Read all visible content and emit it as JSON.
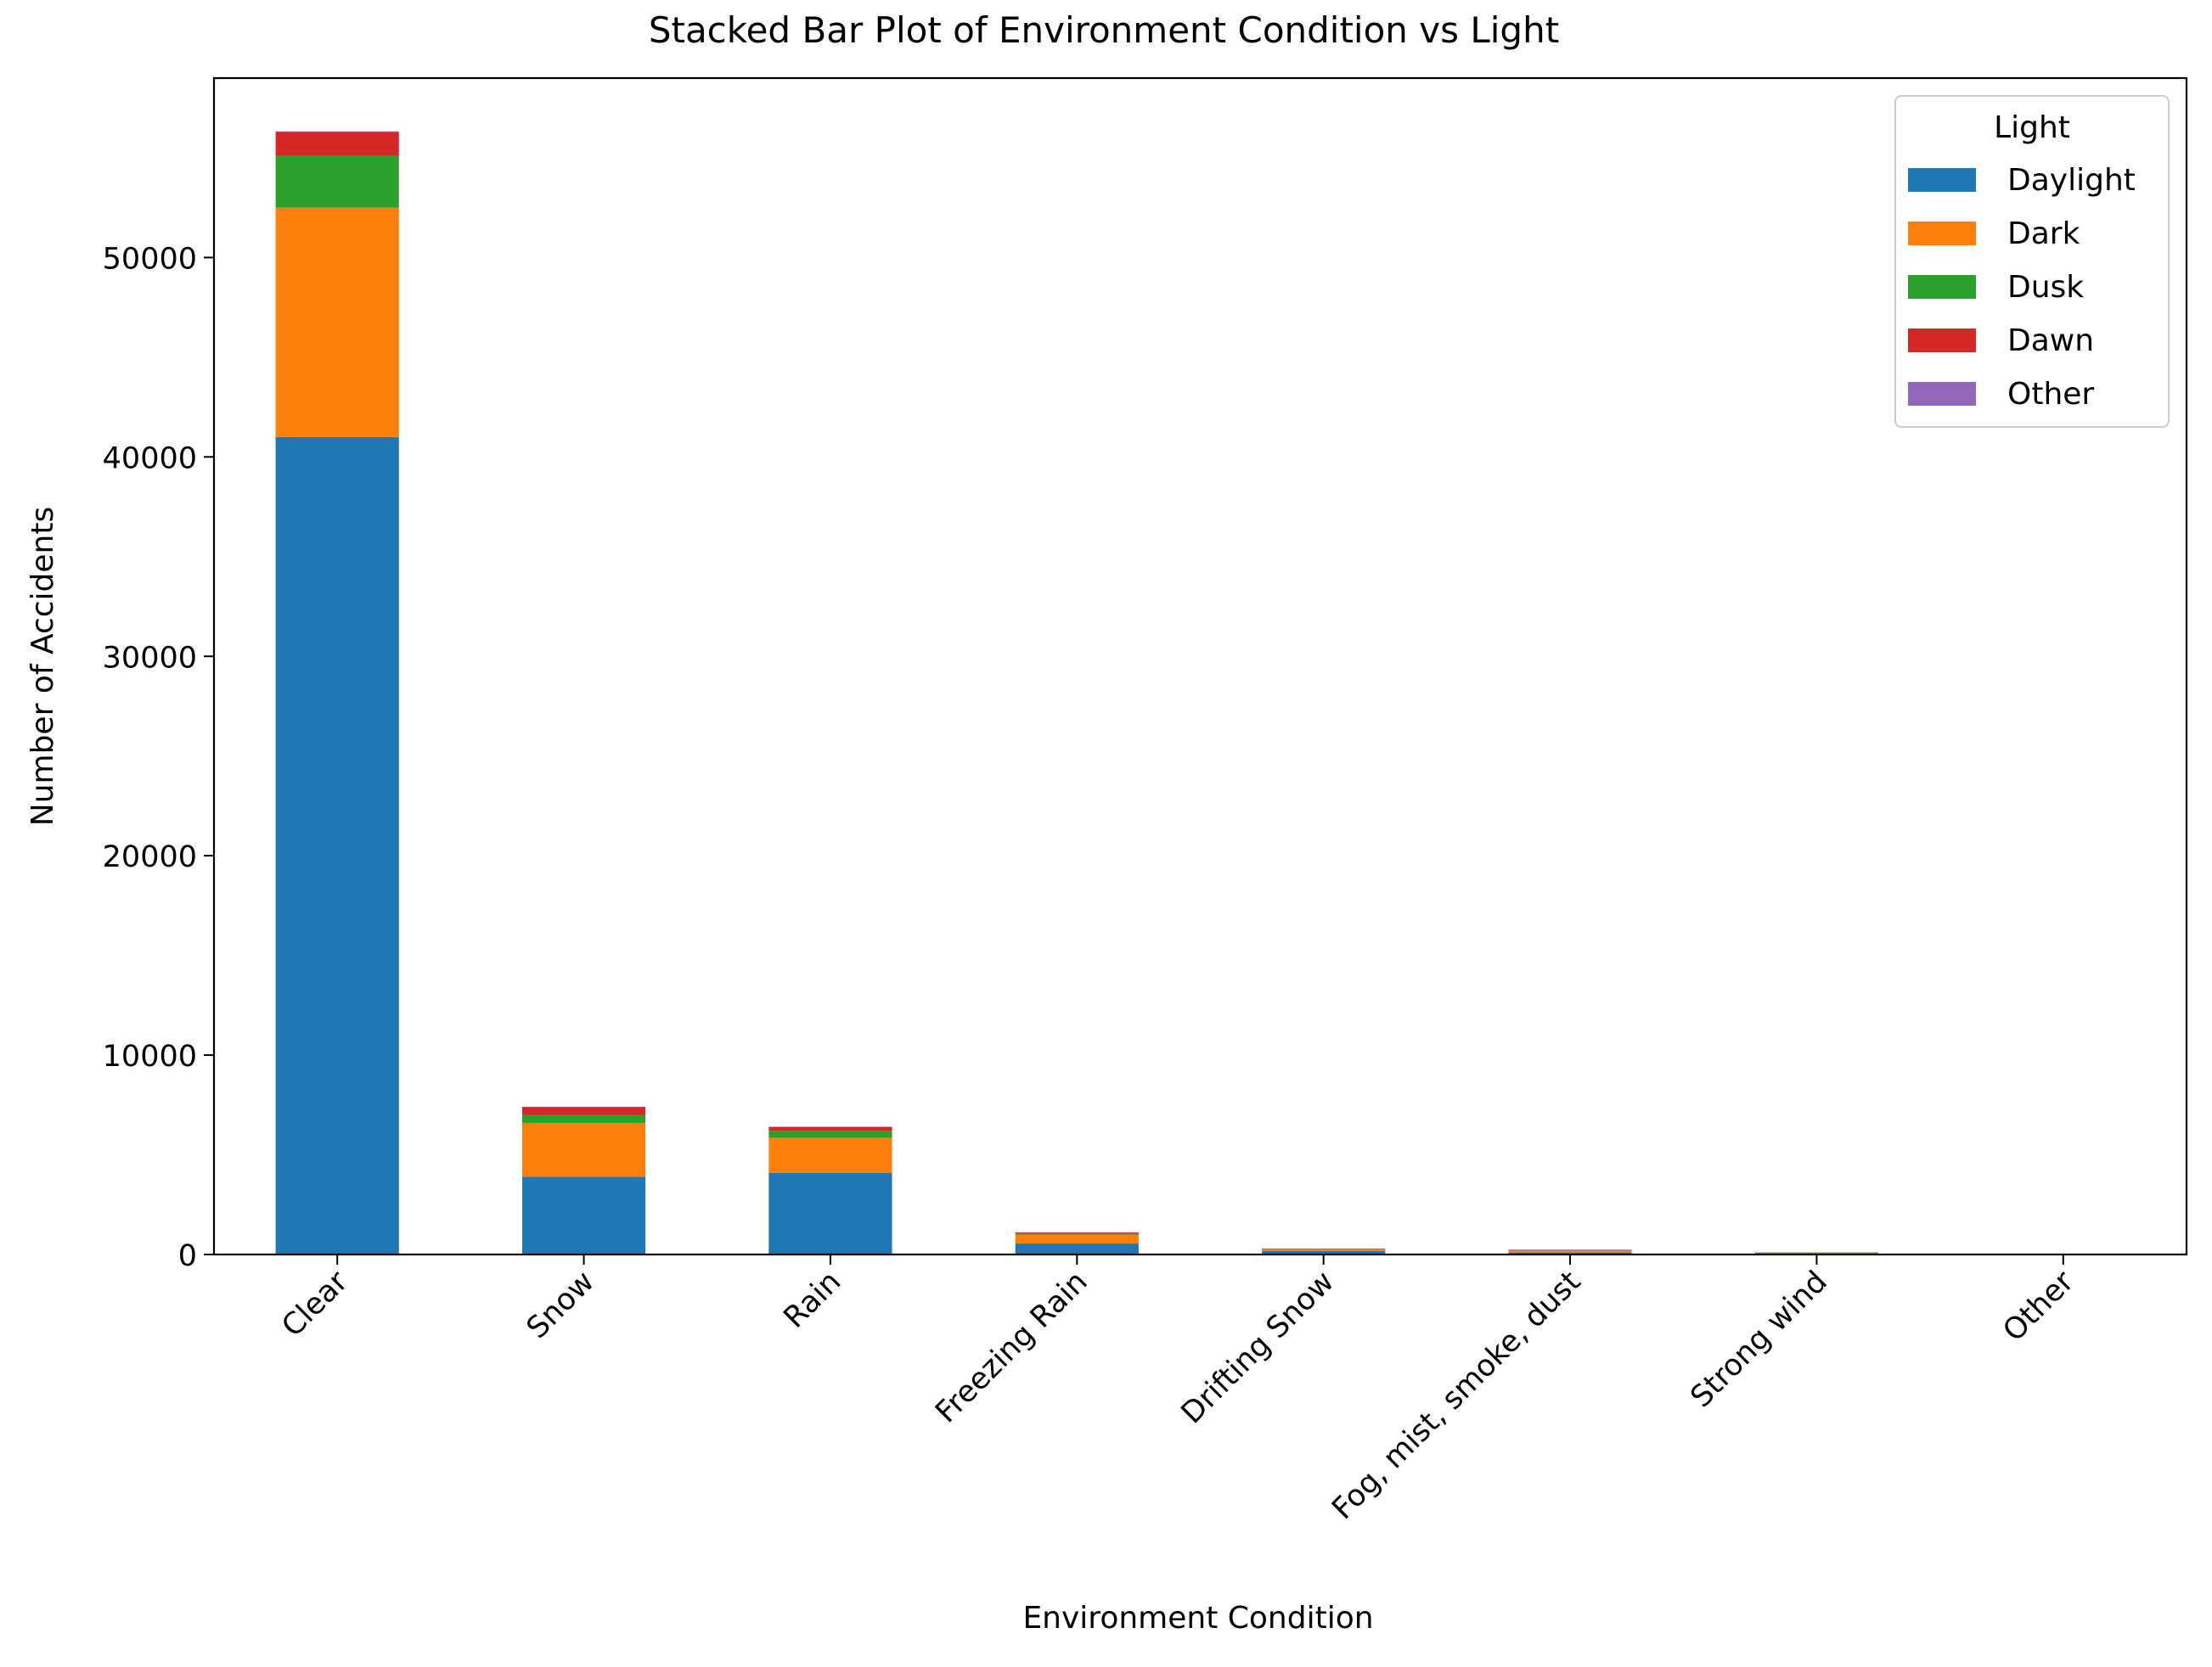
{
  "chart_data": {
    "type": "bar",
    "stacked": true,
    "title": "Stacked Bar Plot of Environment Condition vs Light",
    "xlabel": "Environment Condition",
    "ylabel": "Number of Accidents",
    "ylim": [
      0,
      59000
    ],
    "yticks": [
      0,
      10000,
      20000,
      30000,
      40000,
      50000
    ],
    "grid": false,
    "legend": {
      "title": "Light",
      "placement": "top-right"
    },
    "categories": [
      "Clear",
      "Snow",
      "Rain",
      "Freezing Rain",
      "Drifting Snow",
      "Fog, mist, smoke, dust",
      "Strong wind",
      "Other"
    ],
    "series": [
      {
        "name": "Daylight",
        "color": "#1f77b4",
        "values": [
          41000,
          3900,
          4100,
          550,
          180,
          100,
          60,
          20
        ]
      },
      {
        "name": "Dark",
        "color": "#ff7f0e",
        "values": [
          11500,
          2700,
          1750,
          450,
          90,
          120,
          30,
          15
        ]
      },
      {
        "name": "Dusk",
        "color": "#2ca02c",
        "values": [
          2600,
          400,
          350,
          60,
          15,
          10,
          10,
          3
        ]
      },
      {
        "name": "Dawn",
        "color": "#d62728",
        "values": [
          1200,
          400,
          200,
          50,
          10,
          10,
          5,
          2
        ]
      },
      {
        "name": "Other",
        "color": "#9467bd",
        "values": [
          30,
          10,
          10,
          2,
          1,
          1,
          1,
          1
        ]
      }
    ]
  }
}
